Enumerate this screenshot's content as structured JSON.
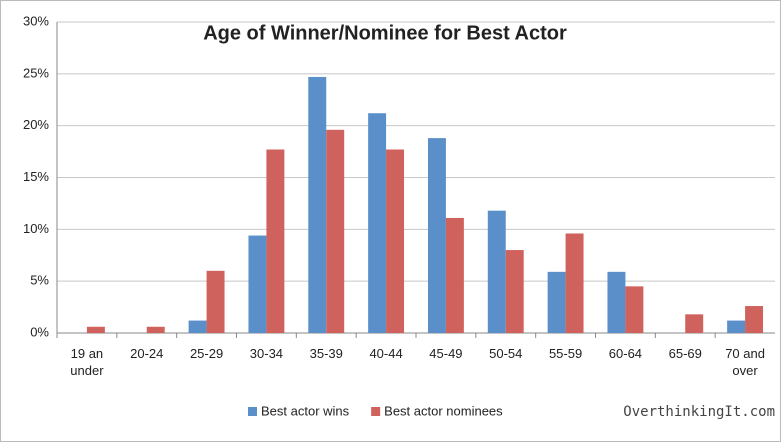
{
  "chart_data": {
    "type": "bar",
    "title": "Age of Winner/Nominee for Best Actor",
    "categories": [
      "19 an under",
      "20-24",
      "25-29",
      "30-34",
      "35-39",
      "40-44",
      "45-49",
      "50-54",
      "55-59",
      "60-64",
      "65-69",
      "70 and over"
    ],
    "series": [
      {
        "name": "Best actor wins",
        "color": "#5b8fc9",
        "values": [
          0,
          0,
          1.2,
          9.4,
          24.7,
          21.2,
          18.8,
          11.8,
          5.9,
          5.9,
          0,
          1.2
        ]
      },
      {
        "name": "Best actor nominees",
        "color": "#cf625c",
        "values": [
          0.6,
          0.6,
          6.0,
          17.7,
          19.6,
          17.7,
          11.1,
          8.0,
          9.6,
          4.5,
          1.8,
          2.6
        ]
      }
    ],
    "ylim": [
      0,
      30
    ],
    "yticks": [
      {
        "value": 0,
        "label": "0%"
      },
      {
        "value": 5,
        "label": "5%"
      },
      {
        "value": 10,
        "label": "10%"
      },
      {
        "value": 15,
        "label": "15%"
      },
      {
        "value": 20,
        "label": "20%"
      },
      {
        "value": 25,
        "label": "25%"
      },
      {
        "value": 30,
        "label": "30%"
      }
    ],
    "grid": true,
    "legend": "bottom",
    "watermark": "OverthinkingIt.com"
  }
}
